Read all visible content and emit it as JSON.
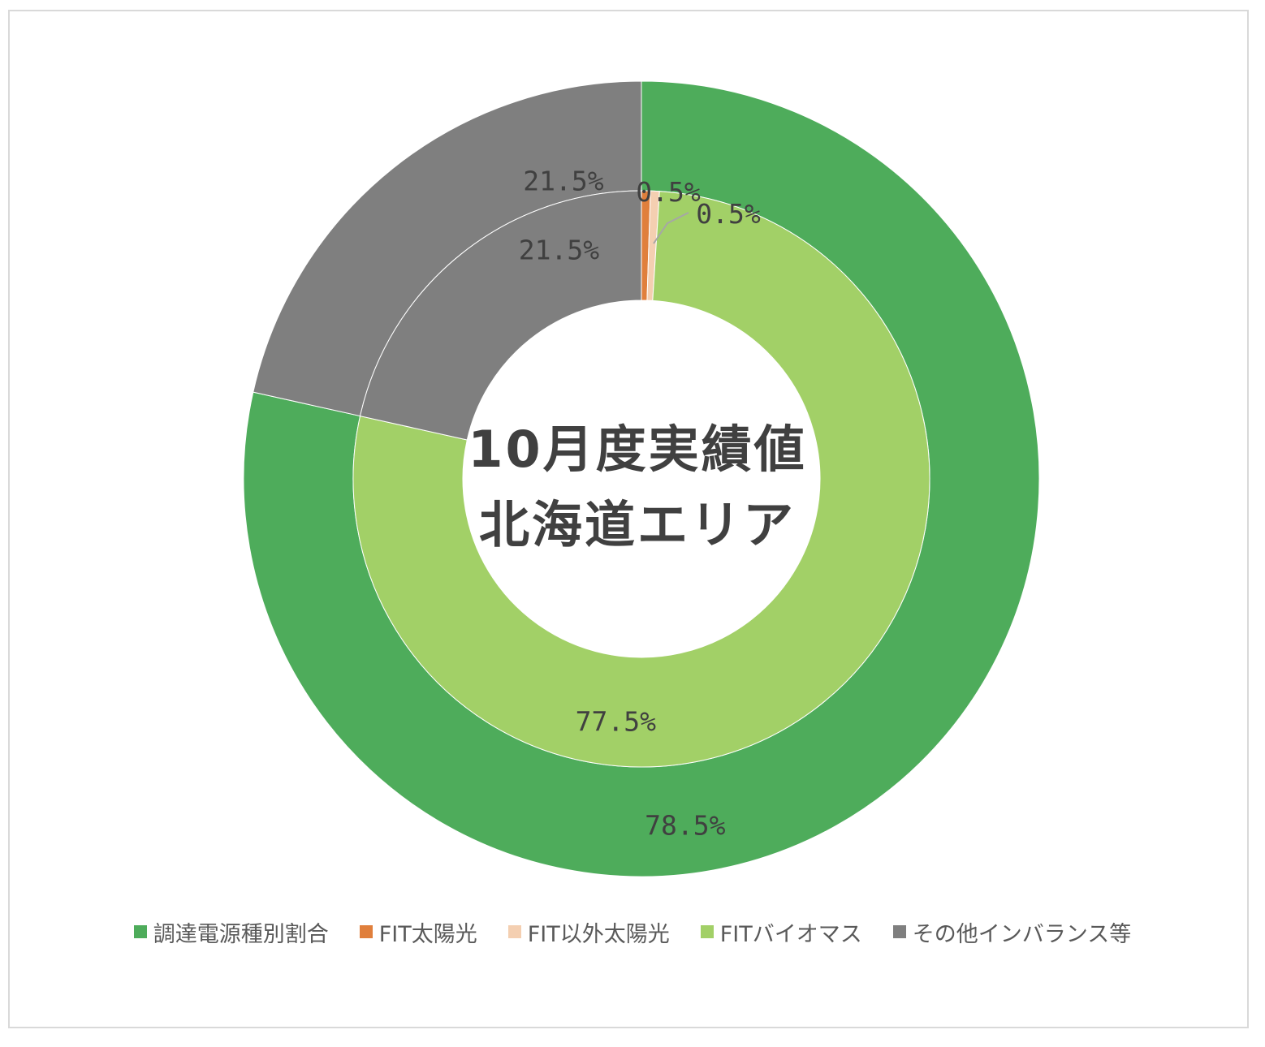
{
  "chart_data": {
    "type": "doughnut",
    "title_lines": [
      "10月度実績値",
      "北海道エリア"
    ],
    "legend": [
      {
        "name": "調達電源種別割合",
        "color": "#4eac5b"
      },
      {
        "name": "FIT太陽光",
        "color": "#e07f3c"
      },
      {
        "name": "FIT以外太陽光",
        "color": "#f4cfb1"
      },
      {
        "name": "FITバイオマス",
        "color": "#a2d067"
      },
      {
        "name": "その他インバランス等",
        "color": "#7f7f7f"
      }
    ],
    "outer_ring": {
      "name": "調達電源種別割合",
      "slices": [
        {
          "category": "調達電源種別割合",
          "value": 78.5,
          "label": "78.5%",
          "color": "#4eac5b"
        },
        {
          "category": "その他インバランス等",
          "value": 21.5,
          "label": "21.5%",
          "color": "#7f7f7f"
        }
      ]
    },
    "inner_ring": {
      "slices": [
        {
          "category": "FIT太陽光",
          "value": 0.5,
          "label": "0.5%",
          "color": "#e07f3c"
        },
        {
          "category": "FIT以外太陽光",
          "value": 0.5,
          "label": "0.5%",
          "color": "#f4cfb1"
        },
        {
          "category": "FITバイオマス",
          "value": 77.5,
          "label": "77.5%",
          "color": "#a2d067"
        },
        {
          "category": "その他インバランス等",
          "value": 21.5,
          "label": "21.5%",
          "color": "#7f7f7f"
        }
      ]
    }
  }
}
